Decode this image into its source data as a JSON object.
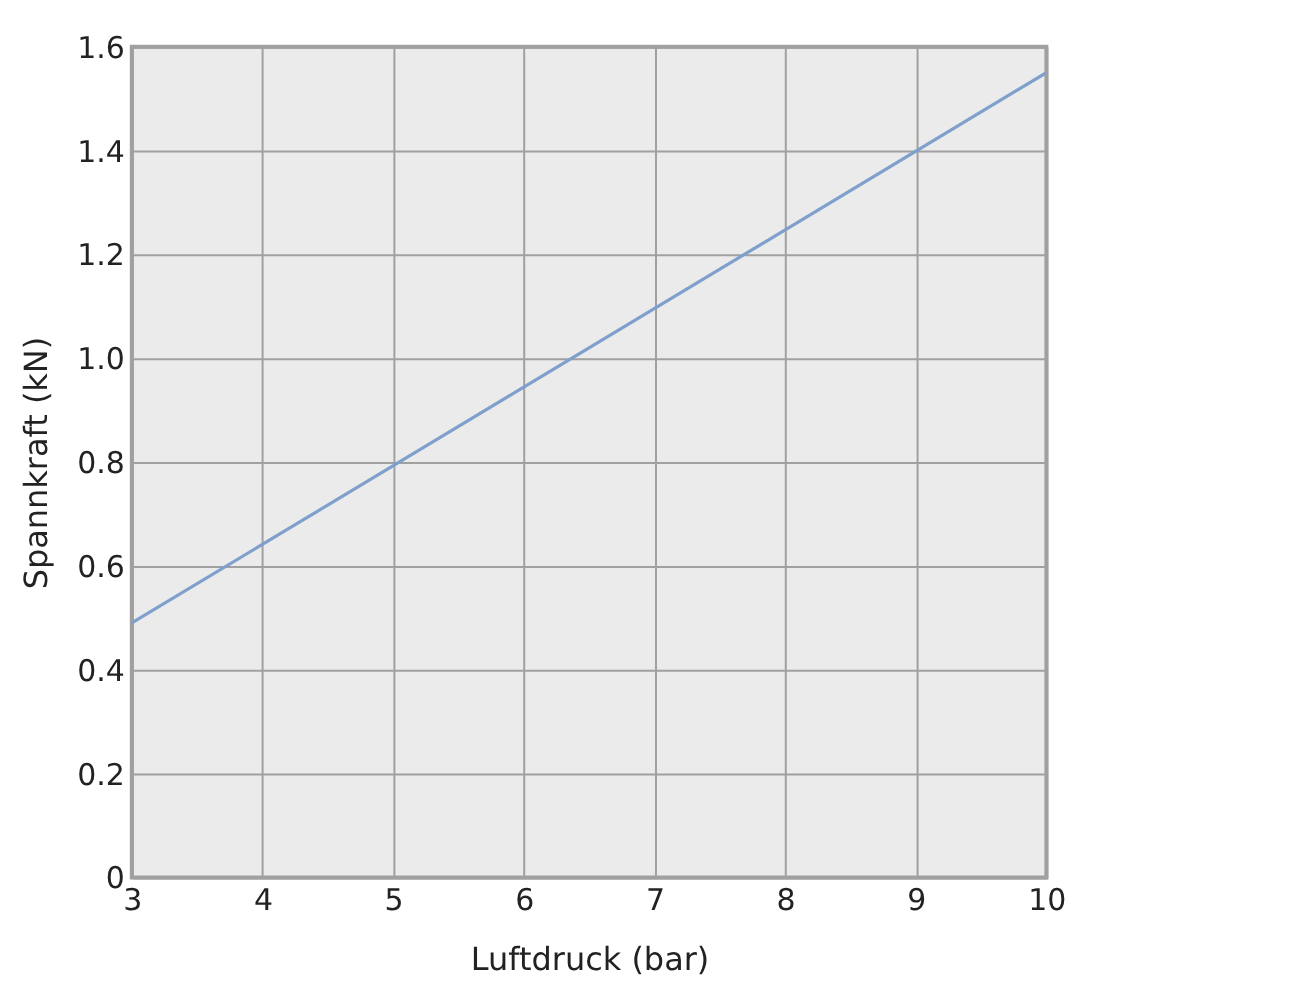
{
  "chart_data": {
    "type": "line",
    "xlabel": "Luftdruck (bar)",
    "ylabel": "Spannkraft (kN)",
    "x": [
      3,
      10
    ],
    "series": [
      {
        "color": "#7f9fcc",
        "values": [
          0.49,
          1.55
        ]
      }
    ],
    "xlim": [
      3,
      10
    ],
    "xticks": [
      3,
      4,
      5,
      6,
      7,
      8,
      9,
      10
    ],
    "ylim": [
      0,
      1.6
    ],
    "yticks": [
      0,
      {
        "value": 0.2,
        "label": "0.2"
      },
      {
        "value": 0.4,
        "label": "0.4"
      },
      {
        "value": 0.6,
        "label": "0.6"
      },
      {
        "value": 0.8,
        "label": "0.8"
      },
      {
        "value": 1.0,
        "label": "1.0"
      },
      {
        "value": 1.2,
        "label": "1.2"
      },
      {
        "value": 1.4,
        "label": "1.4"
      },
      {
        "value": 1.6,
        "label": "1.6"
      }
    ],
    "grid": true,
    "marker": "none",
    "line_style": "solid"
  }
}
